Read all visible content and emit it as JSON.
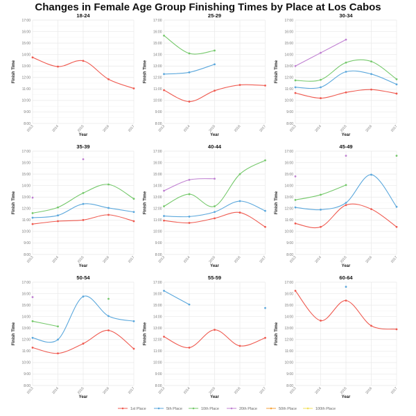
{
  "chart_data": {
    "type": "line",
    "title": "Changes in Female Age Group Finishing Times by Place at Los Cabos",
    "xlabel": "Year",
    "ylabel": "Finish Time",
    "x": [
      2013,
      2014,
      2015,
      2016,
      2017
    ],
    "x_tick_labels": [
      "2013",
      "2014",
      "2015",
      "2016",
      "2017"
    ],
    "ylim": [
      8,
      17
    ],
    "y_ticks": [
      8,
      9,
      10,
      11,
      12,
      13,
      14,
      15,
      16,
      17
    ],
    "y_tick_labels": [
      "8:00",
      "9:00",
      "10:00",
      "11:00",
      "12:00",
      "13:00",
      "14:00",
      "15:00",
      "16:00",
      "17:00"
    ],
    "grid": true,
    "legend_position": "bottom",
    "legend": [
      {
        "name": "1st Place",
        "color": "#ef5a50"
      },
      {
        "name": "5th Place",
        "color": "#5aa7dc"
      },
      {
        "name": "10th Place",
        "color": "#74c86a"
      },
      {
        "name": "20th Place",
        "color": "#c080d2"
      },
      {
        "name": "50th Place",
        "color": "#f5a23a"
      },
      {
        "name": "100th Place",
        "color": "#f2e05a"
      }
    ],
    "panels": [
      {
        "title": "18-24",
        "series": [
          {
            "name": "1st Place",
            "values": [
              13.75,
              12.95,
              13.45,
              11.85,
              11.05
            ]
          }
        ]
      },
      {
        "title": "25-29",
        "series": [
          {
            "name": "1st Place",
            "values": [
              10.9,
              9.9,
              10.85,
              11.35,
              11.3
            ]
          },
          {
            "name": "5th Place",
            "values": [
              12.3,
              12.45,
              13.15,
              null,
              null
            ]
          },
          {
            "name": "10th Place",
            "values": [
              15.65,
              14.1,
              14.35,
              null,
              null
            ]
          }
        ]
      },
      {
        "title": "30-34",
        "series": [
          {
            "name": "1st Place",
            "values": [
              10.65,
              10.2,
              10.7,
              10.95,
              10.6
            ]
          },
          {
            "name": "5th Place",
            "values": [
              11.15,
              11.15,
              12.5,
              12.3,
              11.4
            ]
          },
          {
            "name": "10th Place",
            "values": [
              11.75,
              11.8,
              13.3,
              13.4,
              11.85
            ]
          },
          {
            "name": "20th Place",
            "values": [
              13.0,
              14.15,
              15.3,
              null,
              null
            ]
          }
        ]
      },
      {
        "title": "35-39",
        "series": [
          {
            "name": "1st Place",
            "values": [
              10.65,
              10.9,
              11.0,
              11.45,
              10.9
            ]
          },
          {
            "name": "5th Place",
            "values": [
              11.2,
              11.4,
              12.4,
              12.05,
              11.7
            ]
          },
          {
            "name": "10th Place",
            "values": [
              11.6,
              12.1,
              13.35,
              14.1,
              12.85
            ]
          },
          {
            "name": "20th Place",
            "values": [
              12.95,
              null,
              16.3,
              null,
              null
            ]
          }
        ]
      },
      {
        "title": "40-44",
        "series": [
          {
            "name": "1st Place",
            "values": [
              10.95,
              10.75,
              11.15,
              11.65,
              10.4
            ]
          },
          {
            "name": "5th Place",
            "values": [
              11.35,
              11.3,
              11.7,
              12.65,
              11.8
            ]
          },
          {
            "name": "10th Place",
            "values": [
              12.2,
              13.25,
              12.2,
              15.0,
              16.2
            ]
          },
          {
            "name": "20th Place",
            "values": [
              13.55,
              14.5,
              14.6,
              null,
              null
            ]
          }
        ]
      },
      {
        "title": "45-49",
        "series": [
          {
            "name": "1st Place",
            "values": [
              10.7,
              10.4,
              12.3,
              11.95,
              10.4
            ]
          },
          {
            "name": "5th Place",
            "values": [
              12.1,
              11.9,
              12.5,
              14.95,
              12.15
            ]
          },
          {
            "name": "10th Place",
            "values": [
              12.75,
              13.2,
              14.05,
              null,
              16.6
            ]
          },
          {
            "name": "20th Place",
            "values": [
              14.8,
              null,
              16.6,
              null,
              null
            ]
          }
        ]
      },
      {
        "title": "50-54",
        "series": [
          {
            "name": "1st Place",
            "values": [
              11.3,
              10.8,
              11.65,
              12.8,
              11.2
            ]
          },
          {
            "name": "5th Place",
            "values": [
              12.15,
              12.0,
              15.75,
              14.05,
              13.6
            ]
          },
          {
            "name": "10th Place",
            "values": [
              13.6,
              13.15,
              null,
              15.55,
              null
            ]
          },
          {
            "name": "20th Place",
            "values": [
              15.7,
              null,
              null,
              null,
              null
            ]
          }
        ]
      },
      {
        "title": "55-59",
        "series": [
          {
            "name": "1st Place",
            "values": [
              12.25,
              11.3,
              12.85,
              11.45,
              12.15
            ]
          },
          {
            "name": "5th Place",
            "values": [
              16.25,
              15.05,
              null,
              null,
              14.75
            ]
          }
        ]
      },
      {
        "title": "60-64",
        "series": [
          {
            "name": "1st Place",
            "values": [
              16.25,
              13.65,
              15.4,
              13.2,
              12.9
            ]
          },
          {
            "name": "5th Place",
            "values": [
              null,
              null,
              16.6,
              null,
              null
            ]
          }
        ]
      }
    ]
  }
}
